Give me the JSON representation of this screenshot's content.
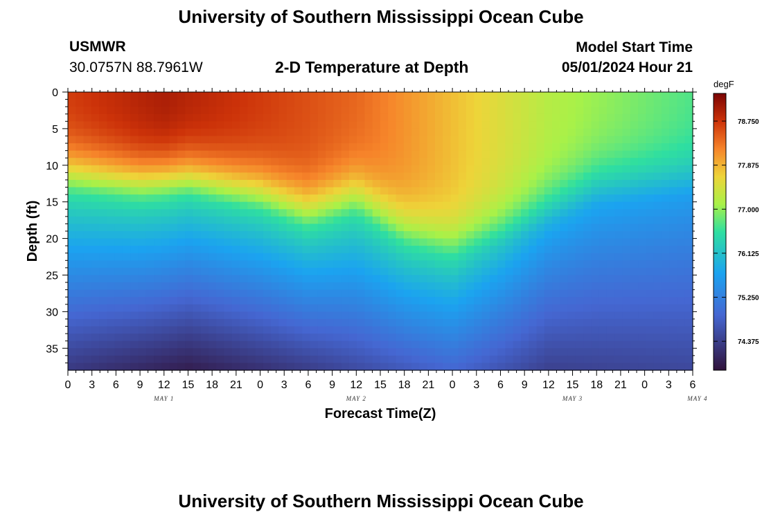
{
  "page": {
    "title": "University of Southern Mississippi Ocean Cube",
    "footer_title": "University of Southern Mississippi Ocean Cube",
    "station": "USMWR",
    "coordinates": "30.0757N  88.7961W",
    "subtitle": "2-D Temperature at Depth",
    "model_start_label": "Model Start Time",
    "model_start_value": "05/01/2024 Hour 21"
  },
  "chart_data": {
    "type": "heatmap",
    "title": "2-D Temperature at Depth",
    "xlabel": "Forecast Time(Z)",
    "ylabel": "Depth (ft)",
    "x_tick_labels": [
      "0",
      "3",
      "6",
      "9",
      "12",
      "15",
      "18",
      "21",
      "0",
      "3",
      "6",
      "9",
      "12",
      "15",
      "18",
      "21",
      "0",
      "3",
      "6",
      "9",
      "12",
      "15",
      "18",
      "21",
      "0",
      "3",
      "6"
    ],
    "date_labels": [
      {
        "text": "MAY 1",
        "tick_index": 4
      },
      {
        "text": "MAY 2",
        "tick_index": 12
      },
      {
        "text": "MAY 3",
        "tick_index": 21
      },
      {
        "text": "MAY 4",
        "tick_index": 26.2
      }
    ],
    "ylim": [
      0,
      38
    ],
    "y_ticks": [
      0,
      5,
      10,
      15,
      20,
      25,
      30,
      35
    ],
    "y_tick_labels": [
      "0",
      "5",
      "10",
      "15",
      "20",
      "25",
      "30",
      "35"
    ],
    "colorbar": {
      "unit": "degF",
      "range": [
        73.8,
        79.3
      ],
      "ticks": [
        74.375,
        75.25,
        76.125,
        77.0,
        77.875,
        78.75
      ],
      "tick_labels": [
        "74.375",
        "75.250",
        "76.125",
        "77.000",
        "77.875",
        "78.750"
      ]
    },
    "surface_temp_degF": [
      {
        "hours": 0,
        "value": 78.7
      },
      {
        "hours": 12,
        "value": 79.0
      },
      {
        "hours": 36,
        "value": 78.4
      },
      {
        "hours": 48,
        "value": 77.8
      },
      {
        "hours": 60,
        "value": 77.2
      },
      {
        "hours": 78,
        "value": 76.7
      }
    ],
    "thermocline_depth_ft": [
      {
        "hours": 0,
        "value": 14.5
      },
      {
        "hours": 9,
        "value": 15.5
      },
      {
        "hours": 15,
        "value": 15.0
      },
      {
        "hours": 24,
        "value": 17.0
      },
      {
        "hours": 30,
        "value": 19.5
      },
      {
        "hours": 36,
        "value": 17.5
      },
      {
        "hours": 42,
        "value": 22.0
      },
      {
        "hours": 48,
        "value": 24.0
      },
      {
        "hours": 54,
        "value": 22.0
      },
      {
        "hours": 60,
        "value": 19.0
      },
      {
        "hours": 66,
        "value": 16.0
      },
      {
        "hours": 78,
        "value": 15.0
      }
    ],
    "bottom_temp_degF": [
      {
        "hours": 0,
        "value": 74.3
      },
      {
        "hours": 15,
        "value": 73.95
      },
      {
        "hours": 30,
        "value": 74.35
      },
      {
        "hours": 48,
        "value": 74.9
      },
      {
        "hours": 60,
        "value": 74.4
      },
      {
        "hours": 78,
        "value": 74.5
      }
    ]
  }
}
